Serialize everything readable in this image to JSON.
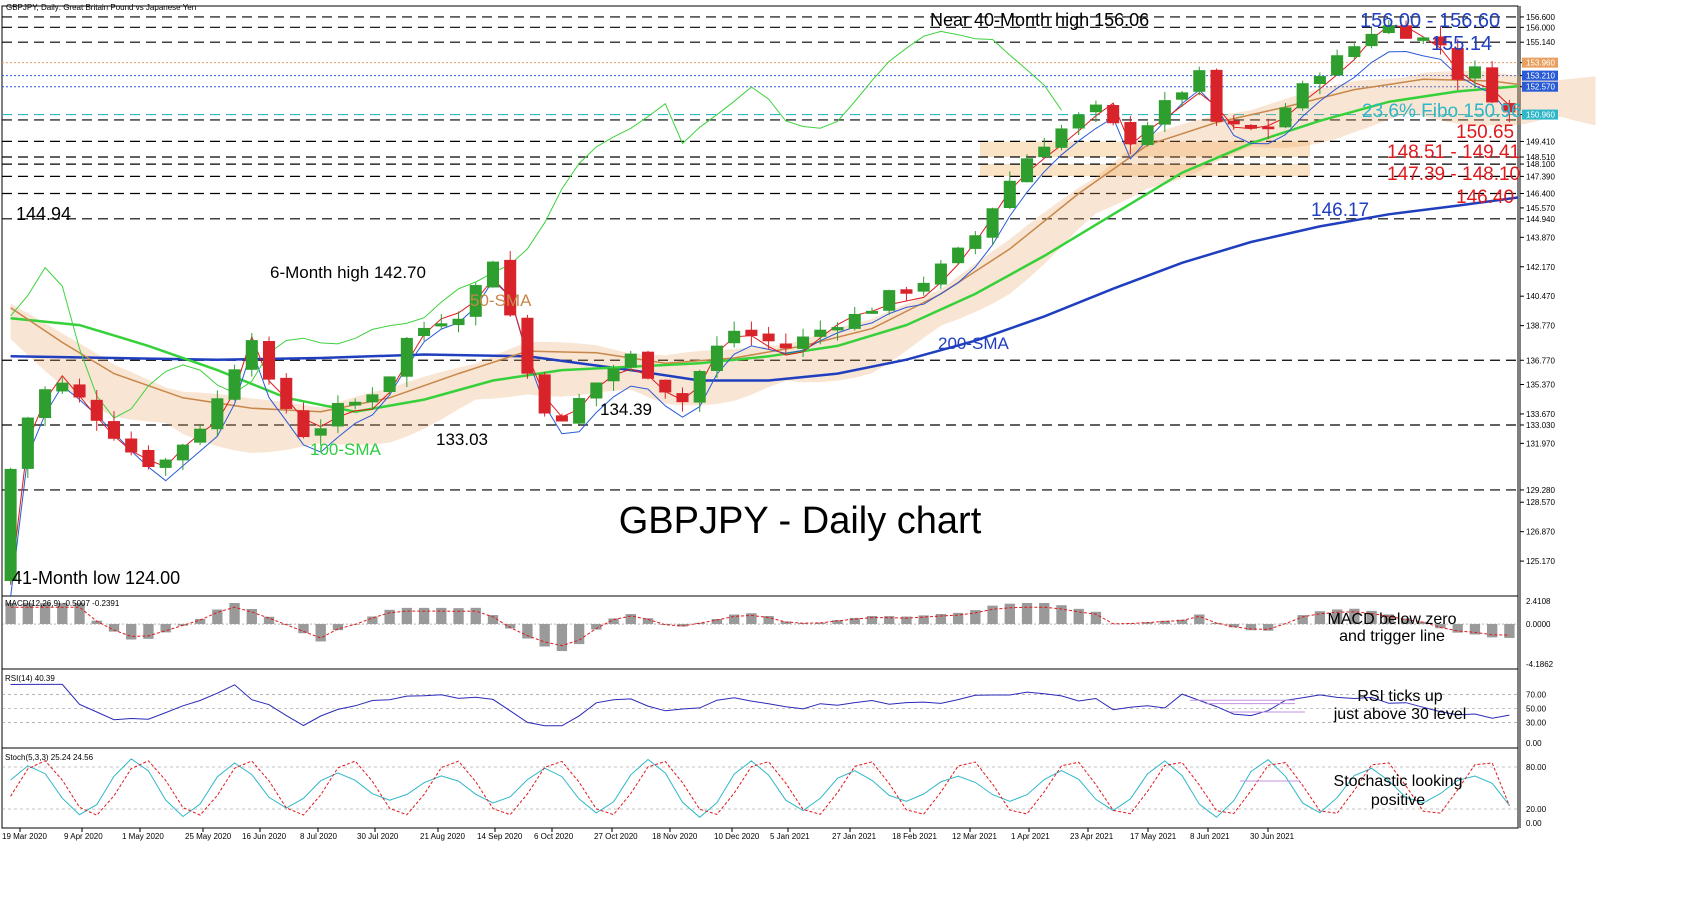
{
  "header": {
    "symbol_text": "GBPJPY, Daily:  Great Britain Pound vs Japanese Yen"
  },
  "chart_data": {
    "type": "candlestick",
    "title": "GBPJPY - Daily chart",
    "price_axis_ticks": [
      "156.600",
      "156.000",
      "155.140",
      "153.960",
      "153.210",
      "152.570",
      "150.960",
      "149.410",
      "148.510",
      "148.100",
      "147.390",
      "146.400",
      "145.570",
      "144.940",
      "143.870",
      "142.170",
      "140.470",
      "138.770",
      "136.770",
      "135.370",
      "133.670",
      "133.030",
      "131.970",
      "129.280",
      "128.570",
      "126.870",
      "125.170"
    ],
    "price_axis_highlights": [
      {
        "label": "153.960",
        "color": "#e8a060"
      },
      {
        "label": "153.210",
        "color": "#2a5bd7"
      },
      {
        "label": "152.570",
        "color": "#2a5bd7"
      },
      {
        "label": "150.960",
        "color": "#2fb7c9"
      }
    ],
    "dashed_levels": [
      156.6,
      156.0,
      155.14,
      150.96,
      150.65,
      149.41,
      148.51,
      148.1,
      147.39,
      146.4,
      144.94,
      136.77,
      133.03,
      129.28
    ],
    "support_zones": [
      [
        148.51,
        149.41
      ],
      [
        147.39,
        148.1
      ]
    ],
    "annotations": [
      {
        "text": "Near 40-Month high 156.06",
        "color": "#000000"
      },
      {
        "text": "156.00 - 156.60",
        "color": "#1f3fbf"
      },
      {
        "text": "155.14",
        "color": "#1f3fbf"
      },
      {
        "text": "23.6% Fibo 150.96",
        "color": "#2fb7c9"
      },
      {
        "text": "150.65",
        "color": "#e0191d"
      },
      {
        "text": "148.51 - 149.41",
        "color": "#e0191d"
      },
      {
        "text": "147.39 - 148.10",
        "color": "#e0191d"
      },
      {
        "text": "146.40",
        "color": "#e0191d"
      },
      {
        "text": "146.17",
        "color": "#1f3fbf"
      },
      {
        "text": "144.94",
        "color": "#000000"
      },
      {
        "text": "6-Month high 142.70",
        "color": "#000000"
      },
      {
        "text": "50-SMA",
        "color": "#c8874a"
      },
      {
        "text": "200-SMA",
        "color": "#1f3fbf"
      },
      {
        "text": "100-SMA",
        "color": "#2ecc40"
      },
      {
        "text": "134.39",
        "color": "#000000"
      },
      {
        "text": "133.03",
        "color": "#000000"
      },
      {
        "text": "41-Month low 124.00",
        "color": "#000000"
      }
    ],
    "x_labels": [
      "19 Mar 2020",
      "9 Apr 2020",
      "1 May 2020",
      "25 May 2020",
      "16 Jun 2020",
      "8 Jul 2020",
      "30 Jul 2020",
      "21 Aug 2020",
      "14 Sep 2020",
      "6 Oct 2020",
      "27 Oct 2020",
      "18 Nov 2020",
      "10 Dec 2020",
      "5 Jan 2021",
      "27 Jan 2021",
      "18 Feb 2021",
      "12 Mar 2021",
      "1 Apr 2021",
      "23 Apr 2021",
      "17 May 2021",
      "8 Jun 2021",
      "30 Jun 2021"
    ],
    "price_path": [
      [
        0,
        124.0
      ],
      [
        0.5,
        130.5
      ],
      [
        1.5,
        133.5
      ],
      [
        3,
        135.8
      ],
      [
        4.5,
        134.5
      ],
      [
        6,
        133.0
      ],
      [
        7.5,
        131.5
      ],
      [
        9,
        130.5
      ],
      [
        10.5,
        132.0
      ],
      [
        12,
        133.5
      ],
      [
        13.5,
        136.5
      ],
      [
        14.2,
        139.6
      ],
      [
        15,
        136.0
      ],
      [
        16.5,
        134.0
      ],
      [
        17.5,
        132.5
      ],
      [
        18.5,
        133.0
      ],
      [
        19.5,
        134.0
      ],
      [
        21,
        134.5
      ],
      [
        22.5,
        136.0
      ],
      [
        23.5,
        138.0
      ],
      [
        25,
        139.0
      ],
      [
        26.5,
        139.5
      ],
      [
        27.5,
        141.0
      ],
      [
        28.5,
        142.7
      ],
      [
        29.3,
        140.0
      ],
      [
        30.5,
        136.0
      ],
      [
        31.5,
        134.0
      ],
      [
        32.5,
        133.03
      ],
      [
        33.5,
        134.5
      ],
      [
        35,
        136.0
      ],
      [
        36.5,
        137.0
      ],
      [
        38,
        135.5
      ],
      [
        39.5,
        134.39
      ],
      [
        41,
        137.0
      ],
      [
        42.5,
        138.5
      ],
      [
        44,
        138.0
      ],
      [
        45.5,
        137.5
      ],
      [
        47,
        138.3
      ],
      [
        48.5,
        139.0
      ],
      [
        50,
        139.5
      ],
      [
        51.5,
        140.5
      ],
      [
        53,
        141.0
      ],
      [
        55,
        142.5
      ],
      [
        56.5,
        144.0
      ],
      [
        58,
        146.5
      ],
      [
        59.5,
        148.5
      ],
      [
        61,
        149.8
      ],
      [
        62.5,
        150.8
      ],
      [
        64,
        151.5
      ],
      [
        65,
        149.0
      ],
      [
        66.5,
        150.5
      ],
      [
        68,
        152.0
      ],
      [
        69.5,
        153.2
      ],
      [
        70.5,
        150.5
      ],
      [
        72,
        150.0
      ],
      [
        73.5,
        150.2
      ],
      [
        75,
        152.0
      ],
      [
        76.5,
        153.5
      ],
      [
        78,
        154.5
      ],
      [
        79.5,
        155.8
      ],
      [
        80.5,
        156.06
      ],
      [
        82,
        155.5
      ],
      [
        83.5,
        155.0
      ],
      [
        84.5,
        153.2
      ],
      [
        85.5,
        153.5
      ],
      [
        86.5,
        152.0
      ],
      [
        87.5,
        151.0
      ]
    ],
    "sma50": [
      [
        0,
        139.8
      ],
      [
        3,
        137.8
      ],
      [
        6,
        136.0
      ],
      [
        10,
        134.6
      ],
      [
        14,
        134.0
      ],
      [
        18,
        133.8
      ],
      [
        22,
        134.6
      ],
      [
        26,
        136.0
      ],
      [
        30,
        137.3
      ],
      [
        34,
        137.2
      ],
      [
        38,
        136.6
      ],
      [
        42,
        136.9
      ],
      [
        46,
        137.6
      ],
      [
        50,
        138.6
      ],
      [
        54,
        140.6
      ],
      [
        58,
        143.2
      ],
      [
        62,
        146.4
      ],
      [
        66,
        149.2
      ],
      [
        70,
        150.5
      ],
      [
        74,
        151.4
      ],
      [
        78,
        152.4
      ],
      [
        82,
        153.0
      ],
      [
        86,
        152.9
      ],
      [
        87.5,
        152.7
      ]
    ],
    "sma100": [
      [
        0,
        139.2
      ],
      [
        4,
        138.8
      ],
      [
        8,
        137.6
      ],
      [
        12,
        136.2
      ],
      [
        16,
        134.6
      ],
      [
        20,
        133.8
      ],
      [
        24,
        134.5
      ],
      [
        28,
        135.6
      ],
      [
        32,
        136.2
      ],
      [
        36,
        136.4
      ],
      [
        40,
        136.6
      ],
      [
        44,
        137.0
      ],
      [
        48,
        137.6
      ],
      [
        52,
        138.8
      ],
      [
        56,
        140.6
      ],
      [
        60,
        142.8
      ],
      [
        64,
        145.2
      ],
      [
        68,
        147.6
      ],
      [
        72,
        149.3
      ],
      [
        76,
        150.6
      ],
      [
        80,
        151.7
      ],
      [
        84,
        152.3
      ],
      [
        87.5,
        152.6
      ]
    ],
    "sma200": [
      [
        0,
        137.0
      ],
      [
        6,
        136.9
      ],
      [
        12,
        136.8
      ],
      [
        18,
        136.9
      ],
      [
        24,
        137.1
      ],
      [
        30,
        137.0
      ],
      [
        36,
        136.2
      ],
      [
        40,
        135.6
      ],
      [
        44,
        135.6
      ],
      [
        48,
        136.0
      ],
      [
        52,
        136.8
      ],
      [
        56,
        137.9
      ],
      [
        60,
        139.3
      ],
      [
        64,
        140.9
      ],
      [
        68,
        142.4
      ],
      [
        72,
        143.6
      ],
      [
        76,
        144.5
      ],
      [
        80,
        145.2
      ],
      [
        84,
        145.7
      ],
      [
        87.5,
        146.17
      ]
    ],
    "macd": {
      "label": "MACD(12,26,9) -0.5007 -0.2391",
      "axis_ticks": [
        "2.4108",
        "0.0000",
        "-4.1862"
      ],
      "range": [
        -4.1862,
        2.4108
      ],
      "annotation": [
        "MACD below zero",
        "and trigger line"
      ]
    },
    "rsi": {
      "label": "RSI(14) 40.39",
      "axis_ticks": [
        "70.00",
        "50.00",
        "30.00",
        "0.00"
      ],
      "range": [
        0,
        100
      ],
      "annotation": [
        "RSI ticks up",
        "just above 30 level"
      ]
    },
    "stoch": {
      "label": "Stoch(5,3,3) 25.24 24.56",
      "axis_ticks": [
        "80.00",
        "20.00",
        "0.00"
      ],
      "range": [
        0,
        100
      ],
      "annotation": [
        "Stochastic looking",
        "positive"
      ]
    }
  },
  "colors": {
    "bull": "#2e9e2e",
    "bear": "#d8232a",
    "sma50": "#c8874a",
    "sma100": "#36d13a",
    "sma200": "#1f3fbf",
    "tenkan": "#e0191d",
    "kijun": "#2a5bd7",
    "chikou": "#3fd13f",
    "cloud": "#e8a060",
    "cloud_blue": "#2a8fd7",
    "macd_hist": "#9a9a9a",
    "signal": "#e0191d",
    "rsi": "#2a2ab8",
    "stoch_main": "#2fb7c9",
    "stoch_sig": "#e0191d",
    "level_line": "#c090e0"
  }
}
